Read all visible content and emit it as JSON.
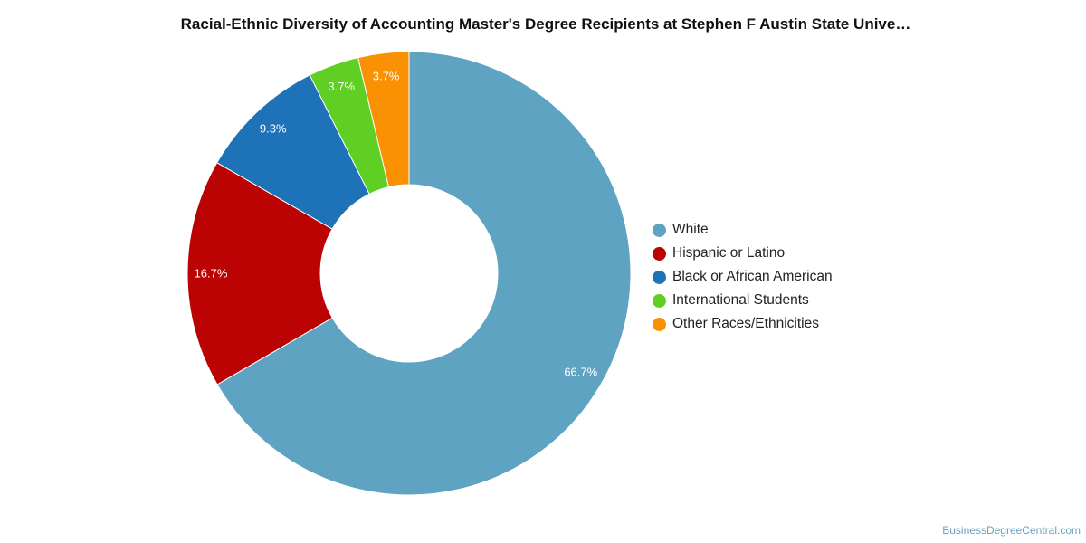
{
  "chart_data": {
    "type": "pie",
    "style": "donut",
    "title": "Racial-Ethnic Diversity of Accounting Master's Degree Recipients at Stephen F Austin State Unive…",
    "legend_position": "right",
    "series": [
      {
        "name": "White",
        "value": 66.7,
        "label": "66.7%",
        "color": "#5ea3c1"
      },
      {
        "name": "Hispanic or Latino",
        "value": 16.7,
        "label": "16.7%",
        "color": "#bb0303"
      },
      {
        "name": "Black or African American",
        "value": 9.3,
        "label": "9.3%",
        "color": "#1e73b8"
      },
      {
        "name": "International Students",
        "value": 3.7,
        "label": "3.7%",
        "color": "#5fcf24"
      },
      {
        "name": "Other Races/Ethnicities",
        "value": 3.7,
        "label": "3.7%",
        "color": "#f99103"
      }
    ]
  },
  "credit": "BusinessDegreeCentral.com"
}
